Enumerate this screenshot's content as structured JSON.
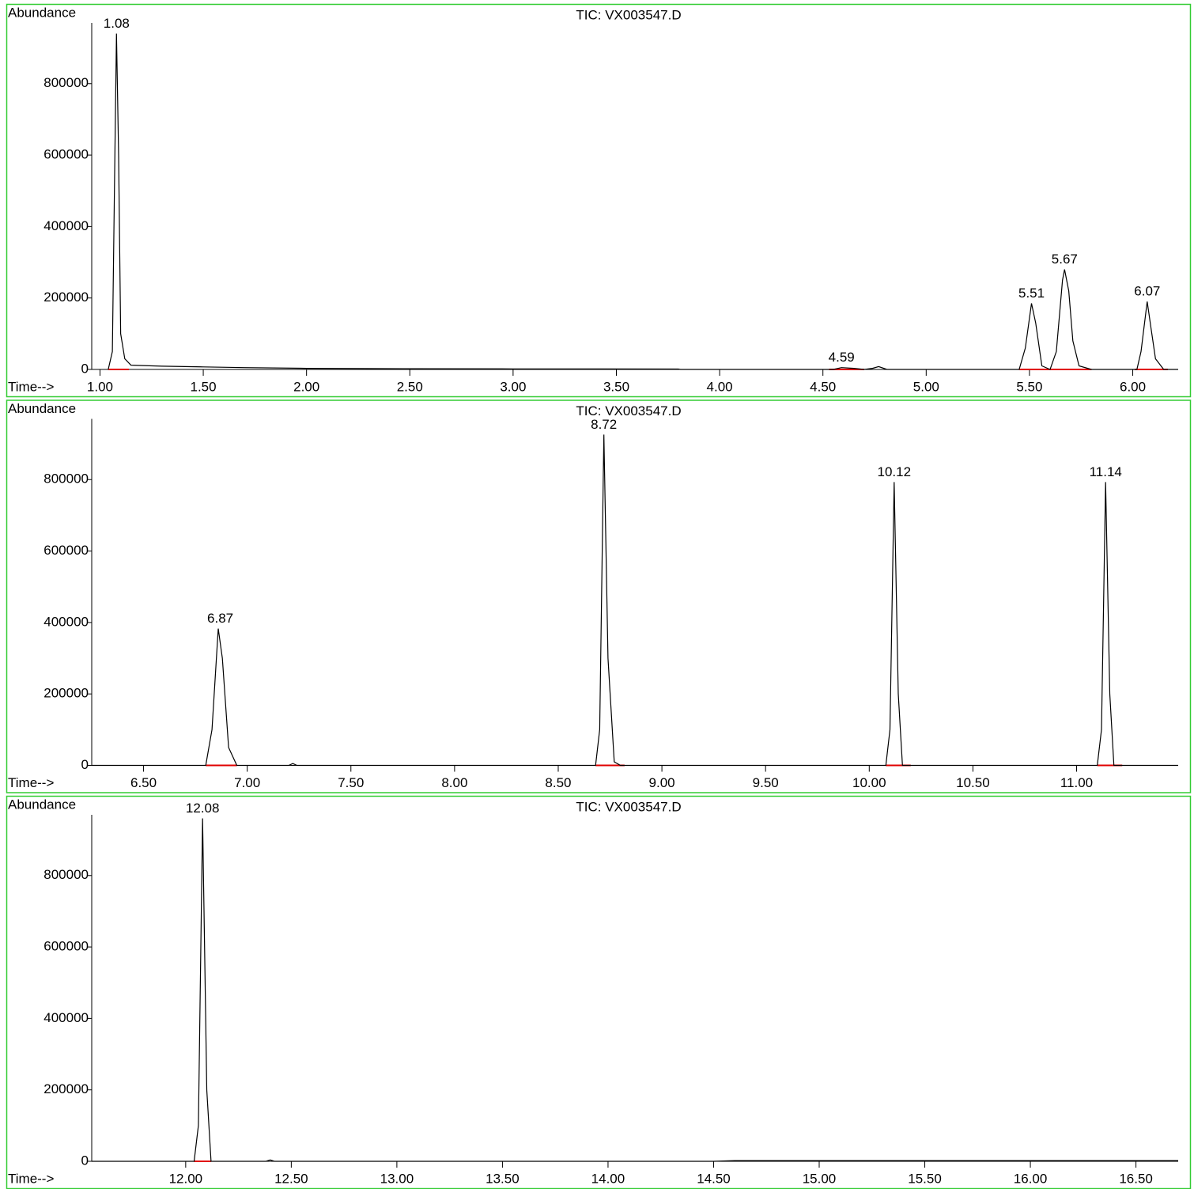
{
  "chart_data": [
    {
      "type": "line",
      "title": "TIC: VX003547.D",
      "ylabel": "Abundance",
      "xlabel": "Time-->",
      "color": "#000000",
      "baseline_color": "#e00000",
      "border_color": "#33cc33",
      "xlim": [
        0.96,
        6.22
      ],
      "ylim": [
        0,
        970000
      ],
      "xticks": [
        {
          "value": 1,
          "label": "1.00"
        },
        {
          "value": 1.5,
          "label": "1.50"
        },
        {
          "value": 2,
          "label": "2.00"
        },
        {
          "value": 2.5,
          "label": "2.50"
        },
        {
          "value": 3,
          "label": "3.00"
        },
        {
          "value": 3.5,
          "label": "3.50"
        },
        {
          "value": 4,
          "label": "4.00"
        },
        {
          "value": 4.5,
          "label": "4.50"
        },
        {
          "value": 5,
          "label": "5.00"
        },
        {
          "value": 5.5,
          "label": "5.50"
        },
        {
          "value": 6,
          "label": "6.00"
        }
      ],
      "yticks": [
        0,
        200000,
        400000,
        600000,
        800000
      ],
      "x": [
        1.04,
        1.06,
        1.07,
        1.08,
        1.09,
        1.1,
        1.12,
        1.15,
        1.3,
        1.5,
        1.7,
        2.0,
        2.5,
        3.0,
        3.8,
        3.81,
        4.55,
        4.59,
        4.65,
        4.7,
        4.74,
        4.77,
        4.81,
        5.45,
        5.48,
        5.51,
        5.53,
        5.56,
        5.6,
        5.63,
        5.66,
        5.67,
        5.69,
        5.71,
        5.74,
        5.8,
        6.02,
        6.04,
        6.07,
        6.09,
        6.11,
        6.15,
        6.22
      ],
      "values": [
        0,
        50000,
        500000,
        940000,
        600000,
        100000,
        30000,
        12000,
        9000,
        7000,
        5000,
        3000,
        2000,
        1500,
        1000,
        0,
        0,
        5000,
        3000,
        0,
        3000,
        8000,
        0,
        0,
        60000,
        185000,
        130000,
        10000,
        0,
        50000,
        250000,
        280000,
        220000,
        80000,
        10000,
        0,
        0,
        50000,
        190000,
        110000,
        30000,
        0,
        0
      ],
      "peaks": [
        {
          "x": 1.08,
          "y": 940000
        },
        {
          "x": 4.59,
          "y": 5000
        },
        {
          "x": 5.51,
          "y": 185000
        },
        {
          "x": 5.67,
          "y": 280000
        },
        {
          "x": 6.07,
          "y": 190000
        }
      ],
      "baselines": [
        [
          1.04,
          1.14
        ],
        [
          4.53,
          4.7
        ],
        [
          5.45,
          5.59
        ],
        [
          5.59,
          5.8
        ],
        [
          6.01,
          6.17
        ]
      ]
    },
    {
      "type": "line",
      "title": "TIC: VX003547.D",
      "ylabel": "Abundance",
      "xlabel": "Time-->",
      "color": "#000000",
      "baseline_color": "#e00000",
      "border_color": "#33cc33",
      "xlim": [
        6.25,
        11.49
      ],
      "ylim": [
        0,
        970000
      ],
      "xticks": [
        {
          "value": 6.5,
          "label": "6.50"
        },
        {
          "value": 7,
          "label": "7.00"
        },
        {
          "value": 7.5,
          "label": "7.50"
        },
        {
          "value": 8,
          "label": "8.00"
        },
        {
          "value": 8.5,
          "label": "8.50"
        },
        {
          "value": 9,
          "label": "9.00"
        },
        {
          "value": 9.5,
          "label": "9.50"
        },
        {
          "value": 10,
          "label": "10.00"
        },
        {
          "value": 10.5,
          "label": "10.50"
        },
        {
          "value": 11,
          "label": "11.00"
        }
      ],
      "yticks": [
        0,
        200000,
        400000,
        600000,
        800000
      ],
      "x": [
        6.25,
        6.8,
        6.83,
        6.86,
        6.88,
        6.91,
        6.95,
        7.2,
        7.22,
        7.24,
        8.68,
        8.7,
        8.72,
        8.74,
        8.77,
        8.8,
        10.08,
        10.1,
        10.12,
        10.14,
        10.16,
        11.1,
        11.12,
        11.14,
        11.16,
        11.18,
        11.49
      ],
      "values": [
        0,
        0,
        100000,
        383000,
        300000,
        50000,
        0,
        0,
        5000,
        0,
        0,
        100000,
        926000,
        300000,
        10000,
        0,
        0,
        100000,
        793000,
        200000,
        0,
        0,
        100000,
        793000,
        200000,
        0,
        0
      ],
      "peaks": [
        {
          "x": 6.87,
          "y": 383000
        },
        {
          "x": 8.72,
          "y": 926000
        },
        {
          "x": 10.12,
          "y": 793000
        },
        {
          "x": 11.14,
          "y": 793000
        }
      ],
      "baselines": [
        [
          6.8,
          6.95
        ],
        [
          8.68,
          8.82
        ],
        [
          10.08,
          10.2
        ],
        [
          11.1,
          11.22
        ]
      ]
    },
    {
      "type": "line",
      "title": "TIC: VX003547.D",
      "ylabel": "Abundance",
      "xlabel": "Time-->",
      "color": "#000000",
      "baseline_color": "#e00000",
      "border_color": "#33cc33",
      "xlim": [
        11.555,
        16.7
      ],
      "ylim": [
        0,
        970000
      ],
      "xticks": [
        {
          "value": 12,
          "label": "12.00"
        },
        {
          "value": 12.5,
          "label": "12.50"
        },
        {
          "value": 13,
          "label": "13.00"
        },
        {
          "value": 13.5,
          "label": "13.50"
        },
        {
          "value": 14,
          "label": "14.00"
        },
        {
          "value": 14.5,
          "label": "14.50"
        },
        {
          "value": 15,
          "label": "15.00"
        },
        {
          "value": 15.5,
          "label": "15.50"
        },
        {
          "value": 16,
          "label": "16.00"
        },
        {
          "value": 16.5,
          "label": "16.50"
        }
      ],
      "yticks": [
        0,
        200000,
        400000,
        600000,
        800000
      ],
      "x": [
        11.555,
        12.04,
        12.06,
        12.08,
        12.1,
        12.12,
        12.38,
        12.4,
        12.42,
        14.5,
        14.6,
        16.7
      ],
      "values": [
        0,
        0,
        100000,
        960000,
        200000,
        0,
        0,
        4000,
        0,
        0,
        2000,
        2000
      ],
      "peaks": [
        {
          "x": 12.08,
          "y": 960000
        }
      ],
      "baselines": [
        [
          12.04,
          12.12
        ]
      ]
    }
  ]
}
